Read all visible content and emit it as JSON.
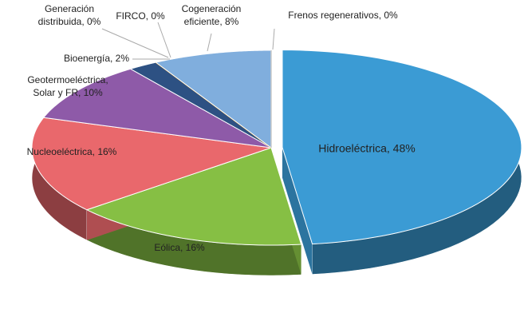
{
  "chart_data": {
    "type": "pie",
    "three_d": true,
    "labels": [
      [
        "Hidroeléctrica, 48%"
      ],
      [
        "Eólica, 16%"
      ],
      [
        "Nucleoeléctrica, 16%"
      ],
      [
        "Geotermoeléctrica,",
        "Solar y FR, 10%"
      ],
      [
        "Bioenergía, 2%"
      ],
      [
        "Generación",
        "distribuida, 0%"
      ],
      [
        "FIRCO, 0%"
      ],
      [
        "Cogeneración",
        "eficiente, 8%"
      ],
      [
        "Frenos regenerativos, 0%"
      ]
    ],
    "values": [
      48,
      16,
      16,
      10,
      2,
      0,
      0,
      8,
      0
    ],
    "colors": [
      "#3b9bd4",
      "#86bf44",
      "#e9686c",
      "#8e5aa8",
      "#2d5183",
      "#b03a2e",
      "#c9a227",
      "#80aedd",
      "#cccccc"
    ],
    "exploded": [
      0
    ]
  }
}
